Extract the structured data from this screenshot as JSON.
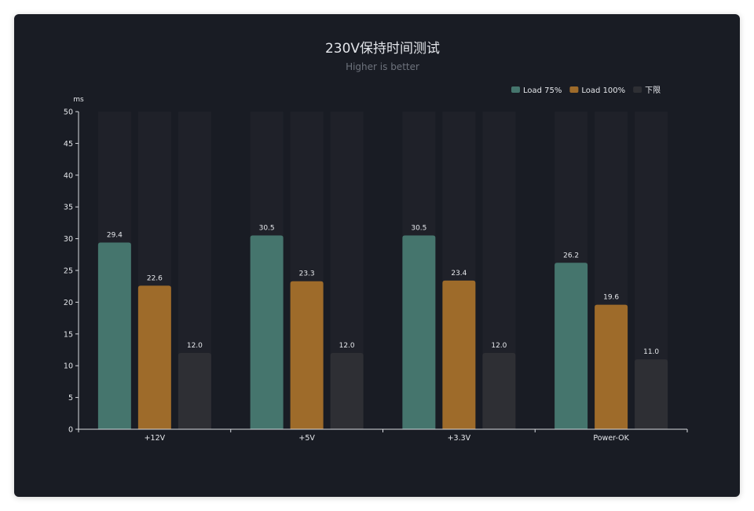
{
  "chart_data": {
    "type": "bar",
    "title": "230V保持时间测试",
    "subtitle": "Higher is better",
    "ylabel": "ms",
    "ylim": [
      0,
      50
    ],
    "yticks": [
      0,
      5,
      10,
      15,
      20,
      25,
      30,
      35,
      40,
      45,
      50
    ],
    "categories": [
      "+12V",
      "+5V",
      "+3.3V",
      "Power-OK"
    ],
    "series": [
      {
        "name": "Load 75%",
        "color": "#45756d",
        "values": [
          29.4,
          30.5,
          30.5,
          26.2
        ],
        "labels": [
          "29.4",
          "30.5",
          "30.5",
          "26.2"
        ]
      },
      {
        "name": "Load 100%",
        "color": "#9e6b2a",
        "values": [
          22.6,
          23.3,
          23.4,
          19.6
        ],
        "labels": [
          "22.6",
          "23.3",
          "23.4",
          "19.6"
        ]
      },
      {
        "name": "下限",
        "color": "#2e2f34",
        "values": [
          12.0,
          12.0,
          12.0,
          11.0
        ],
        "labels": [
          "12.0",
          "12.0",
          "12.0",
          "11.0"
        ]
      }
    ],
    "legend_position": "top-right",
    "grid": false,
    "background_bars": true,
    "colors": {
      "background": "#191c24",
      "bar_background": "#1f2129",
      "axis": "#d9dbe0"
    }
  }
}
